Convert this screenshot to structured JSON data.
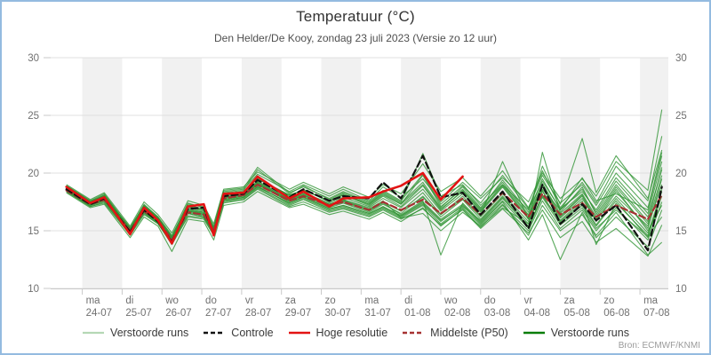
{
  "source": "Bron: ECMWF/KNMI",
  "legend": {
    "items": [
      {
        "label": "Verstoorde runs",
        "color": "#b5d8b5",
        "dash": "",
        "width": 2.2
      },
      {
        "label": "Controle",
        "color": "#111111",
        "dash": "5 3",
        "width": 2.4
      },
      {
        "label": "Hoge resolutie",
        "color": "#e31313",
        "dash": "",
        "width": 2.6
      },
      {
        "label": "Middelste (P50)",
        "color": "#a63232",
        "dash": "5 3",
        "width": 2.4
      },
      {
        "label": "Verstoorde runs",
        "color": "#0a7d0a",
        "dash": "",
        "width": 2.6
      }
    ]
  },
  "chart_data": {
    "type": "line",
    "title": "Temperatuur (°C)",
    "subtitle": "Den Helder/De Kooy, zondag 23 juli 2023 (Versie zo 12 uur)",
    "y_axis": {
      "range": [
        10,
        30
      ],
      "ticks": [
        10,
        15,
        20,
        25,
        30
      ],
      "labels_both_sides": true,
      "grid": "horizontal"
    },
    "x_axis": {
      "note": "t is in days after 2023-07-23 12:00; day ticks at t=0.5+k",
      "ticks": [
        {
          "day": "ma",
          "date": "24-07"
        },
        {
          "day": "di",
          "date": "25-07"
        },
        {
          "day": "wo",
          "date": "26-07"
        },
        {
          "day": "do",
          "date": "27-07"
        },
        {
          "day": "vr",
          "date": "28-07"
        },
        {
          "day": "za",
          "date": "29-07"
        },
        {
          "day": "zo",
          "date": "30-07"
        },
        {
          "day": "ma",
          "date": "31-07"
        },
        {
          "day": "di",
          "date": "01-08"
        },
        {
          "day": "wo",
          "date": "02-08"
        },
        {
          "day": "do",
          "date": "03-08"
        },
        {
          "day": "vr",
          "date": "04-08"
        },
        {
          "day": "za",
          "date": "05-08"
        },
        {
          "day": "zo",
          "date": "06-08"
        },
        {
          "day": "ma",
          "date": "07-08"
        }
      ],
      "band_color": "#f1f1f1",
      "grid_color": "#e0e0e0",
      "axis_color": "#c9c9c9",
      "tick_text_color": "#707070"
    },
    "t": [
      0.1,
      0.7,
      1.05,
      1.7,
      2.05,
      2.4,
      2.75,
      3.15,
      3.55,
      3.8,
      4.05,
      4.55,
      4.9,
      5.7,
      6.05,
      6.7,
      7.05,
      7.7,
      8.05,
      8.5,
      9.05,
      9.5,
      10.05,
      10.5,
      11.05,
      11.7,
      12.05,
      12.5,
      13.05,
      13.4,
      13.9,
      14.7,
      15.05
    ],
    "series": [
      {
        "name": "Controle",
        "color": "#111111",
        "dash": "7 4",
        "width": 2.2,
        "values": [
          18.6,
          17.3,
          17.8,
          14.9,
          16.8,
          15.8,
          14.0,
          16.9,
          17.0,
          14.7,
          18.0,
          18.2,
          19.4,
          17.9,
          18.6,
          17.6,
          18.0,
          17.8,
          19.2,
          17.8,
          21.5,
          17.9,
          18.3,
          16.4,
          18.4,
          15.2,
          19.0,
          15.6,
          17.3,
          15.9,
          17.2,
          13.3,
          18.8
        ]
      },
      {
        "name": "Hoge resolutie",
        "color": "#e31313",
        "dash": "",
        "width": 2.6,
        "values": [
          18.8,
          17.4,
          17.9,
          14.7,
          17.0,
          15.9,
          13.9,
          17.1,
          17.3,
          14.6,
          18.2,
          18.3,
          19.7,
          17.8,
          18.4,
          17.1,
          17.8,
          17.9,
          18.4,
          18.9,
          20.0,
          17.7,
          19.7,
          null,
          null,
          null,
          null,
          null,
          null,
          null,
          null,
          null,
          null
        ]
      },
      {
        "name": "Middelste (P50)",
        "color": "#a63232",
        "dash": "7 4",
        "width": 2.2,
        "values": [
          18.5,
          17.3,
          17.7,
          15.0,
          16.7,
          15.9,
          14.2,
          16.6,
          16.4,
          15.0,
          17.8,
          18.1,
          19.0,
          17.6,
          18.0,
          17.2,
          17.5,
          16.8,
          17.5,
          16.8,
          17.7,
          16.5,
          17.8,
          16.4,
          18.3,
          16.2,
          18.2,
          16.4,
          17.4,
          16.2,
          17.2,
          16.0,
          18.1
        ]
      }
    ],
    "ensemble": {
      "name": "Verstoorde runs",
      "color": "#2f9433",
      "opacity": 0.8,
      "width": 1.1,
      "members": [
        [
          18.9,
          17.6,
          18.2,
          15.2,
          17.3,
          16.2,
          14.5,
          17.4,
          17.0,
          15.3,
          18.4,
          18.6,
          19.9,
          18.4,
          19.0,
          18.0,
          18.6,
          17.6,
          18.8,
          17.9,
          19.5,
          17.5,
          19.2,
          17.8,
          19.6,
          17.5,
          20.0,
          17.8,
          19.5,
          18.0,
          21.0,
          18.5,
          25.5
        ],
        [
          18.7,
          17.5,
          18.0,
          15.1,
          17.2,
          16.1,
          14.4,
          17.2,
          16.9,
          15.2,
          18.3,
          18.5,
          20.3,
          18.2,
          18.9,
          17.7,
          18.3,
          17.4,
          18.4,
          17.5,
          21.7,
          18.0,
          19.0,
          17.2,
          19.0,
          16.8,
          19.3,
          16.9,
          18.4,
          16.8,
          19.6,
          16.5,
          21.0
        ],
        [
          18.6,
          17.4,
          17.9,
          15.0,
          17.0,
          16.0,
          14.3,
          17.0,
          16.7,
          15.1,
          18.1,
          18.3,
          19.6,
          18.0,
          18.6,
          17.5,
          18.1,
          17.2,
          18.1,
          17.3,
          19.8,
          17.1,
          18.6,
          16.9,
          19.4,
          16.6,
          20.6,
          17.3,
          23.0,
          18.3,
          21.5,
          17.8,
          22.0
        ],
        [
          18.4,
          17.1,
          17.5,
          14.6,
          16.4,
          15.6,
          13.8,
          16.2,
          16.0,
          14.6,
          17.4,
          17.7,
          18.6,
          17.1,
          17.5,
          16.6,
          16.9,
          16.2,
          16.8,
          16.0,
          16.9,
          15.5,
          16.8,
          15.2,
          16.9,
          14.8,
          16.8,
          14.4,
          15.8,
          14.0,
          15.2,
          12.8,
          15.5
        ],
        [
          18.5,
          17.2,
          17.6,
          14.8,
          16.6,
          15.7,
          13.9,
          16.5,
          16.2,
          14.8,
          17.6,
          17.9,
          18.9,
          17.3,
          17.8,
          16.8,
          17.1,
          16.4,
          17.0,
          16.2,
          17.3,
          15.8,
          17.2,
          15.6,
          17.5,
          14.2,
          16.4,
          12.5,
          16.6,
          14.4,
          16.2,
          13.6,
          16.8
        ],
        [
          18.7,
          17.4,
          17.8,
          15.0,
          16.9,
          15.9,
          14.1,
          16.8,
          16.5,
          15.0,
          17.9,
          18.2,
          19.2,
          17.7,
          18.2,
          17.3,
          17.7,
          17.0,
          17.8,
          17.0,
          18.6,
          16.7,
          18.2,
          16.6,
          18.8,
          16.0,
          18.8,
          16.2,
          18.0,
          15.8,
          18.4,
          15.2,
          19.5
        ],
        [
          19.0,
          17.7,
          18.3,
          15.4,
          17.5,
          16.4,
          14.8,
          17.6,
          17.2,
          15.6,
          18.6,
          18.8,
          20.1,
          18.6,
          19.2,
          18.2,
          18.8,
          17.9,
          19.0,
          18.2,
          20.8,
          18.4,
          19.6,
          18.0,
          20.2,
          17.0,
          19.8,
          17.4,
          19.0,
          17.2,
          20.0,
          17.0,
          21.8
        ],
        [
          18.5,
          17.3,
          17.7,
          14.9,
          16.8,
          15.8,
          14.0,
          16.7,
          16.4,
          14.9,
          17.7,
          18.0,
          19.0,
          17.5,
          18.0,
          17.0,
          17.4,
          16.6,
          17.3,
          16.5,
          18.0,
          16.2,
          17.7,
          16.0,
          18.0,
          15.6,
          21.8,
          16.6,
          18.8,
          16.4,
          19.0,
          15.8,
          20.5
        ],
        [
          18.3,
          17.0,
          17.3,
          14.4,
          16.2,
          15.4,
          13.2,
          16.0,
          15.8,
          14.2,
          17.2,
          17.5,
          18.4,
          17.0,
          17.3,
          16.4,
          16.7,
          16.0,
          16.6,
          15.8,
          17.0,
          15.4,
          16.9,
          15.3,
          17.2,
          15.0,
          17.6,
          15.2,
          16.8,
          15.0,
          17.0,
          14.2,
          17.5
        ],
        [
          18.6,
          17.3,
          17.7,
          14.8,
          16.7,
          15.8,
          14.0,
          16.6,
          16.3,
          14.8,
          17.7,
          18.0,
          19.1,
          17.6,
          18.1,
          17.1,
          17.5,
          16.7,
          17.4,
          16.4,
          17.6,
          12.9,
          17.4,
          15.8,
          17.8,
          15.4,
          18.0,
          15.8,
          17.4,
          15.5,
          17.8,
          14.8,
          18.4
        ],
        [
          18.8,
          17.5,
          18.1,
          15.2,
          17.1,
          16.1,
          14.4,
          17.1,
          16.8,
          15.2,
          18.2,
          18.4,
          19.5,
          18.1,
          18.5,
          17.6,
          18.2,
          17.3,
          18.3,
          17.4,
          19.2,
          17.0,
          18.8,
          17.0,
          19.2,
          16.4,
          19.5,
          16.8,
          18.6,
          16.6,
          19.3,
          16.2,
          20.3
        ],
        [
          18.5,
          17.2,
          17.6,
          14.9,
          16.6,
          15.7,
          14.1,
          16.5,
          16.2,
          14.9,
          17.6,
          17.8,
          18.8,
          17.4,
          17.9,
          16.9,
          17.2,
          16.5,
          17.1,
          16.3,
          17.5,
          16.0,
          17.3,
          15.7,
          17.6,
          15.2,
          17.9,
          15.5,
          17.0,
          15.2,
          16.8,
          14.5,
          16.2
        ],
        [
          18.9,
          17.6,
          18.0,
          15.3,
          17.2,
          16.2,
          14.6,
          17.3,
          17.1,
          15.4,
          18.5,
          18.7,
          20.5,
          18.3,
          18.8,
          17.8,
          18.4,
          17.5,
          18.5,
          17.6,
          19.9,
          17.3,
          18.9,
          17.4,
          19.8,
          16.9,
          20.2,
          17.0,
          19.2,
          17.4,
          20.6,
          17.6,
          23.2
        ],
        [
          18.4,
          17.1,
          17.4,
          14.7,
          16.5,
          15.6,
          13.9,
          16.3,
          16.1,
          14.7,
          17.5,
          17.7,
          18.7,
          17.2,
          17.7,
          16.7,
          17.0,
          16.3,
          16.9,
          16.1,
          17.2,
          15.6,
          17.0,
          15.5,
          17.3,
          14.6,
          17.2,
          15.0,
          16.4,
          14.6,
          16.6,
          12.9,
          14.0
        ],
        [
          18.7,
          17.4,
          17.9,
          15.1,
          17.0,
          16.0,
          14.2,
          16.9,
          16.6,
          15.1,
          18.0,
          18.3,
          19.3,
          17.8,
          18.3,
          17.4,
          17.9,
          17.1,
          18.0,
          17.1,
          18.9,
          16.8,
          18.5,
          16.8,
          19.0,
          16.3,
          19.1,
          16.5,
          18.2,
          16.2,
          18.8,
          15.6,
          19.8
        ],
        [
          18.6,
          17.3,
          17.8,
          15.0,
          16.8,
          15.9,
          14.1,
          16.7,
          16.5,
          15.0,
          17.8,
          18.1,
          19.0,
          17.6,
          18.1,
          17.2,
          17.6,
          16.8,
          17.5,
          16.7,
          18.3,
          16.4,
          18.0,
          16.3,
          21.0,
          16.0,
          18.5,
          15.9,
          17.6,
          13.8,
          17.4,
          14.6,
          18.0
        ],
        [
          18.5,
          17.3,
          17.7,
          15.0,
          16.8,
          15.9,
          14.1,
          16.7,
          16.4,
          15.0,
          17.8,
          18.1,
          19.1,
          17.6,
          18.1,
          17.2,
          17.6,
          16.8,
          17.5,
          16.7,
          17.9,
          16.4,
          17.8,
          16.2,
          18.2,
          15.8,
          18.4,
          16.1,
          17.8,
          15.9,
          18.0,
          15.4,
          19.0
        ],
        [
          18.6,
          17.4,
          17.9,
          15.1,
          16.9,
          16.0,
          14.2,
          16.8,
          16.6,
          15.1,
          17.9,
          18.2,
          19.2,
          17.7,
          18.2,
          17.3,
          17.7,
          16.9,
          17.6,
          16.1,
          16.5,
          15.0,
          16.6,
          15.4,
          17.0,
          15.6,
          18.6,
          16.8,
          19.6,
          17.6,
          18.2,
          16.8,
          21.5
        ],
        [
          18.8,
          17.5,
          18.1,
          15.2,
          17.1,
          16.1,
          14.4,
          17.1,
          16.8,
          15.2,
          18.2,
          18.4,
          19.5,
          18.1,
          18.5,
          17.6,
          18.1,
          17.3,
          18.2,
          17.3,
          19.0,
          16.9,
          18.4,
          16.7,
          18.9,
          16.1,
          19.0,
          16.3,
          18.1,
          16.0,
          18.6,
          15.0,
          17.2
        ],
        [
          18.4,
          17.2,
          17.6,
          14.8,
          16.6,
          15.7,
          14.0,
          16.5,
          16.2,
          14.8,
          17.6,
          17.9,
          18.8,
          17.4,
          17.9,
          16.9,
          17.2,
          16.5,
          17.1,
          16.3,
          17.4,
          15.9,
          17.1,
          15.9,
          17.9,
          15.3,
          18.1,
          15.7,
          17.2,
          15.4,
          17.6,
          14.4,
          18.6
        ]
      ]
    }
  }
}
